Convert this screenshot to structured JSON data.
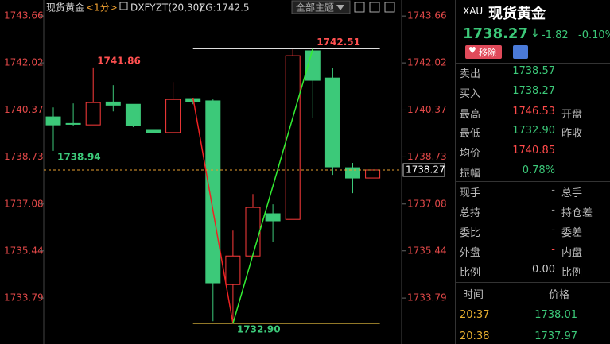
{
  "chart_data": {
    "type": "candlestick",
    "title": "现货黄金",
    "period": "<1分>",
    "indicator": "DXFYZT(20,30)",
    "indicator_value": "ZG:1742.5",
    "theme_button": "全部主题",
    "ylim": [
      1732.18,
      1744.22
    ],
    "yticks": [
      1743.66,
      1742.02,
      1740.37,
      1738.73,
      1737.08,
      1735.44,
      1733.79
    ],
    "up_color": "#ff3b3b",
    "down_color": "#3cc979",
    "zigzag_up_color": "#33ee33",
    "zigzag_down_color": "#ee2222",
    "candles": [
      {
        "open": 1740.13,
        "high": 1740.46,
        "low": 1738.94,
        "close": 1739.85,
        "low_label": "1738.94"
      },
      {
        "open": 1739.9,
        "high": 1740.6,
        "low": 1739.82,
        "close": 1739.87
      },
      {
        "open": 1739.85,
        "high": 1741.86,
        "low": 1739.85,
        "close": 1740.63,
        "high_label": "1741.86"
      },
      {
        "open": 1740.65,
        "high": 1741.24,
        "low": 1740.32,
        "close": 1740.54
      },
      {
        "open": 1740.57,
        "high": 1740.57,
        "low": 1739.77,
        "close": 1739.82
      },
      {
        "open": 1739.66,
        "high": 1740.05,
        "low": 1739.55,
        "close": 1739.58
      },
      {
        "open": 1739.58,
        "high": 1741.35,
        "low": 1739.58,
        "close": 1740.74
      },
      {
        "open": 1740.77,
        "high": 1740.8,
        "low": 1740.57,
        "close": 1740.66
      },
      {
        "open": 1740.69,
        "high": 1740.74,
        "low": 1732.98,
        "close": 1734.32
      },
      {
        "open": 1734.26,
        "high": 1736.15,
        "low": 1732.9,
        "close": 1735.26,
        "low_label": "1732.90"
      },
      {
        "open": 1735.26,
        "high": 1737.43,
        "low": 1735.26,
        "close": 1736.96
      },
      {
        "open": 1736.74,
        "high": 1737.07,
        "low": 1735.74,
        "close": 1736.49
      },
      {
        "open": 1736.54,
        "high": 1742.49,
        "low": 1736.54,
        "close": 1742.27
      },
      {
        "open": 1742.44,
        "high": 1742.51,
        "low": 1740.1,
        "close": 1741.41,
        "high_label": "1742.51"
      },
      {
        "open": 1741.49,
        "high": 1741.85,
        "low": 1738.1,
        "close": 1738.38
      },
      {
        "open": 1738.35,
        "high": 1738.52,
        "low": 1737.46,
        "close": 1737.99
      },
      {
        "open": 1737.99,
        "high": 1738.27,
        "low": 1737.99,
        "close": 1738.27
      }
    ],
    "zigzag": [
      null,
      null,
      null,
      null,
      null,
      null,
      null,
      1740.8,
      null,
      1732.9,
      null,
      null,
      null,
      1742.51,
      null,
      null,
      null
    ],
    "last_price": 1738.27
  },
  "panel": {
    "code": "XAU",
    "name": "现货黄金",
    "price": "1738.27",
    "change": "-1.82",
    "change_pct": "-0.10%",
    "remove_button": "移除",
    "rows": [
      [
        "卖出",
        "1738.57",
        ""
      ],
      [
        "买入",
        "1738.27",
        ""
      ],
      [
        "最高",
        "1746.53",
        "开盘"
      ],
      [
        "最低",
        "1732.90",
        "昨收"
      ],
      [
        "均价",
        "1740.85",
        ""
      ],
      [
        "振幅",
        "0.78%",
        ""
      ],
      [
        "现手",
        "-",
        "总手"
      ],
      [
        "总持",
        "-",
        "持仓差"
      ],
      [
        "委比",
        "-",
        "委差"
      ],
      [
        "外盘",
        "-",
        "内盘"
      ],
      [
        "比例",
        "0.00",
        "比例"
      ]
    ],
    "trades_header": [
      "时间",
      "价格"
    ],
    "trades": [
      [
        "20:37",
        "1738.01"
      ],
      [
        "20:38",
        "1737.97"
      ]
    ]
  }
}
